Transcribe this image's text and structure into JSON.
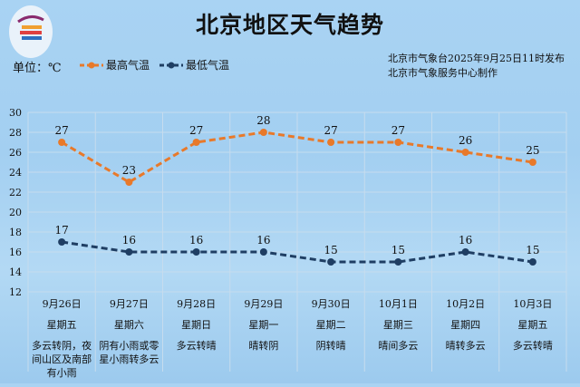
{
  "title": "北京地区天气趋势",
  "unit": "单位：℃",
  "legend": {
    "high": "最高气温",
    "low": "最低气温"
  },
  "publisher": [
    "北京市气象台2025年9月25日11时发布",
    "北京市气象服务中心制作"
  ],
  "colors": {
    "high": "#e8792a",
    "low": "#1f3e63"
  },
  "chart_data": {
    "type": "line",
    "categories": [
      "9月26日",
      "9月27日",
      "9月28日",
      "9月29日",
      "9月30日",
      "10月1日",
      "10月2日",
      "10月3日"
    ],
    "weekdays": [
      "星期五",
      "星期六",
      "星期日",
      "星期一",
      "星期二",
      "星期三",
      "星期四",
      "星期五"
    ],
    "weather": [
      "多云转阴，夜间山区及南部有小雨",
      "阴有小雨或零星小雨转多云",
      "多云转晴",
      "晴转阴",
      "阴转晴",
      "晴间多云",
      "晴转多云",
      "多云转晴"
    ],
    "series": [
      {
        "name": "最高气温",
        "values": [
          27,
          23,
          27,
          28,
          27,
          27,
          26,
          25
        ]
      },
      {
        "name": "最低气温",
        "values": [
          17,
          16,
          16,
          16,
          15,
          15,
          16,
          15
        ]
      }
    ],
    "ylim": [
      12,
      30
    ],
    "yticks": [
      12,
      14,
      16,
      18,
      20,
      22,
      24,
      26,
      28,
      30
    ],
    "grid": true,
    "legend_position": "top-left"
  }
}
